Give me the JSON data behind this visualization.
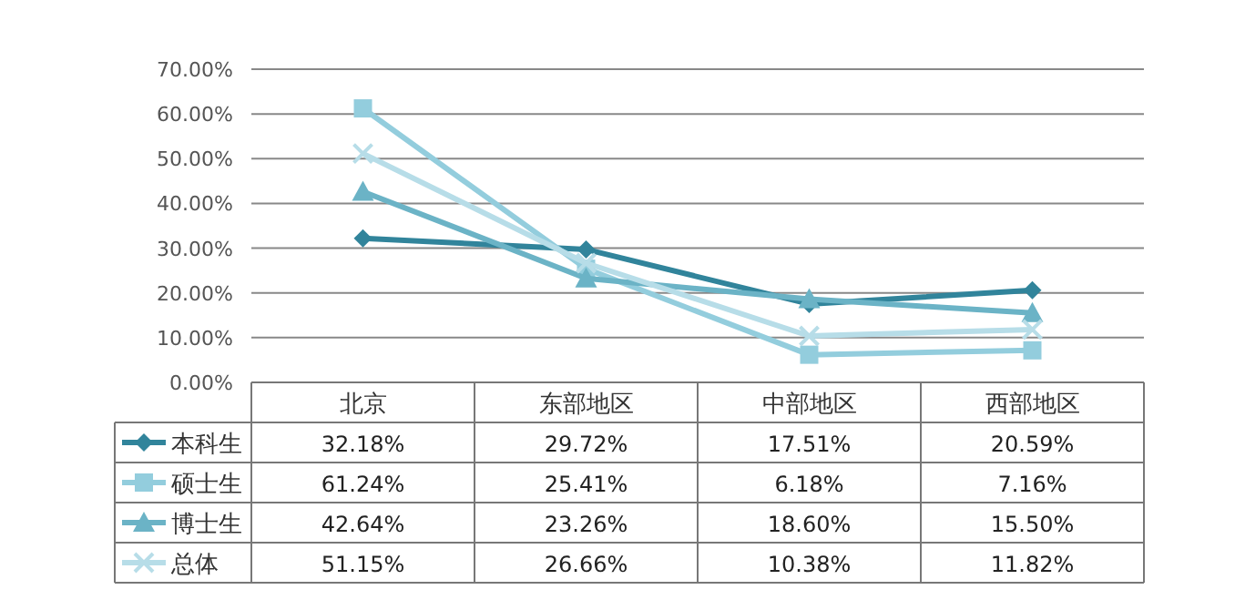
{
  "chart_data": {
    "type": "line",
    "categories": [
      "北京",
      "东部地区",
      "中部地区",
      "西部地区"
    ],
    "series": [
      {
        "name": "本科生",
        "color": "#31849b",
        "marker": "diamond",
        "values": [
          32.18,
          29.72,
          17.51,
          20.59
        ],
        "value_labels": [
          "32.18%",
          "29.72%",
          "17.51%",
          "20.59%"
        ]
      },
      {
        "name": "硕士生",
        "color": "#93cddd",
        "marker": "square",
        "values": [
          61.24,
          25.41,
          6.18,
          7.16
        ],
        "value_labels": [
          "61.24%",
          "25.41%",
          "6.18%",
          "7.16%"
        ]
      },
      {
        "name": "博士生",
        "color": "#6bb3c6",
        "marker": "triangle",
        "values": [
          42.64,
          23.26,
          18.6,
          15.5
        ],
        "value_labels": [
          "42.64%",
          "23.26%",
          "18.60%",
          "15.50%"
        ]
      },
      {
        "name": "总体",
        "color": "#b7dde8",
        "marker": "cross",
        "values": [
          51.15,
          26.66,
          10.38,
          11.82
        ],
        "value_labels": [
          "51.15%",
          "26.66%",
          "10.38%",
          "11.82%"
        ]
      }
    ],
    "ylim": [
      0,
      70
    ],
    "yticks": [
      {
        "value": 0,
        "label": "0.00%"
      },
      {
        "value": 10,
        "label": "10.00%"
      },
      {
        "value": 20,
        "label": "20.00%"
      },
      {
        "value": 30,
        "label": "30.00%"
      },
      {
        "value": 40,
        "label": "40.00%"
      },
      {
        "value": 50,
        "label": "50.00%"
      },
      {
        "value": 60,
        "label": "60.00%"
      },
      {
        "value": 70,
        "label": "70.00%"
      }
    ],
    "grid": "y",
    "legend": "bottom",
    "line_style": "solid"
  }
}
